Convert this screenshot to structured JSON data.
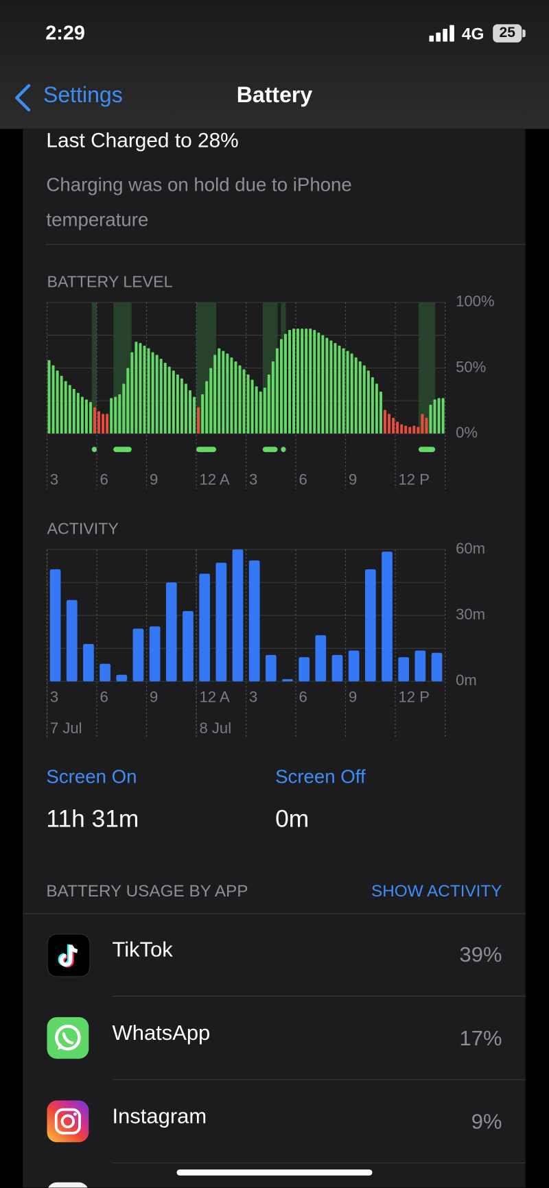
{
  "status_bar": {
    "time": "2:29",
    "network": "4G",
    "battery": "25"
  },
  "nav": {
    "back": "Settings",
    "title": "Battery"
  },
  "last_charged": {
    "title": "Last Charged to 28%",
    "note": "Charging was on hold due to iPhone temperature"
  },
  "chart_data": [
    {
      "type": "bar",
      "title": "BATTERY LEVEL",
      "values": [
        56,
        52,
        48,
        44,
        40,
        37,
        34,
        31,
        28,
        26,
        24,
        20,
        17,
        15,
        15,
        27,
        28,
        30,
        38,
        50,
        62,
        70,
        69,
        67,
        65,
        62,
        60,
        57,
        54,
        51,
        48,
        45,
        42,
        38,
        33,
        28,
        20,
        30,
        40,
        50,
        60,
        65,
        63,
        61,
        58,
        55,
        52,
        49,
        45,
        41,
        36,
        32,
        35,
        45,
        55,
        65,
        72,
        76,
        79,
        80,
        80,
        80,
        80,
        80,
        79,
        77,
        75,
        73,
        71,
        69,
        67,
        65,
        63,
        61,
        58,
        55,
        52,
        48,
        43,
        38,
        32,
        18,
        15,
        12,
        9,
        7,
        6,
        5,
        6,
        5,
        15,
        12,
        22,
        26,
        27,
        27
      ],
      "color": "#65d966",
      "low_color": "#eb4d3d",
      "low_threshold": 20,
      "charging_periods": [
        [
          2.7,
          3.0
        ],
        [
          4.0,
          5.1
        ],
        [
          9.0,
          10.2
        ],
        [
          13.0,
          13.9
        ],
        [
          14.1,
          14.4
        ],
        [
          22.4,
          23.4
        ]
      ],
      "charging_color": "#26422a",
      "xlim": [
        0,
        24
      ],
      "xticks": [
        {
          "value": 0,
          "label": "3"
        },
        {
          "value": 3,
          "label": "6"
        },
        {
          "value": 6,
          "label": "9"
        },
        {
          "value": 9,
          "label": "12 A"
        },
        {
          "value": 12,
          "label": "3"
        },
        {
          "value": 15,
          "label": "6"
        },
        {
          "value": 18,
          "label": "9"
        },
        {
          "value": 21,
          "label": "12 P"
        }
      ],
      "ylim": [
        0,
        100
      ],
      "yticks": [
        {
          "value": 0,
          "label": "0%"
        },
        {
          "value": 50,
          "label": "50%"
        },
        {
          "value": 100,
          "label": "100%"
        }
      ],
      "minor_yticks": [
        25,
        75
      ],
      "grid": true
    },
    {
      "type": "bar",
      "title": "ACTIVITY",
      "values": [
        51,
        37,
        17,
        8,
        3,
        24,
        25,
        45,
        32,
        49,
        54,
        60,
        55,
        12,
        1,
        11,
        21,
        12,
        14,
        51,
        59,
        11,
        14,
        13
      ],
      "color": "#3478f6",
      "xlim": [
        0,
        24
      ],
      "xticks": [
        {
          "value": 0,
          "label": "3"
        },
        {
          "value": 3,
          "label": "6"
        },
        {
          "value": 6,
          "label": "9"
        },
        {
          "value": 9,
          "label": "12 A"
        },
        {
          "value": 12,
          "label": "3"
        },
        {
          "value": 15,
          "label": "6"
        },
        {
          "value": 18,
          "label": "9"
        },
        {
          "value": 21,
          "label": "12 P"
        }
      ],
      "date_labels": [
        {
          "value": 0,
          "label": "7 Jul"
        },
        {
          "value": 9,
          "label": "8 Jul"
        }
      ],
      "ylim": [
        0,
        60
      ],
      "yticks": [
        {
          "value": 0,
          "label": "0m"
        },
        {
          "value": 30,
          "label": "30m"
        },
        {
          "value": 60,
          "label": "60m"
        }
      ],
      "minor_yticks": [
        15,
        45
      ],
      "grid": true
    }
  ],
  "screen": {
    "on_label": "Screen On",
    "on_value": "11h 31m",
    "off_label": "Screen Off",
    "off_value": "0m"
  },
  "usage": {
    "header": "BATTERY USAGE BY APP",
    "action": "SHOW ACTIVITY",
    "apps": [
      {
        "name": "TikTok",
        "percent": "39%"
      },
      {
        "name": "WhatsApp",
        "percent": "17%"
      },
      {
        "name": "Instagram",
        "percent": "9%"
      }
    ]
  }
}
